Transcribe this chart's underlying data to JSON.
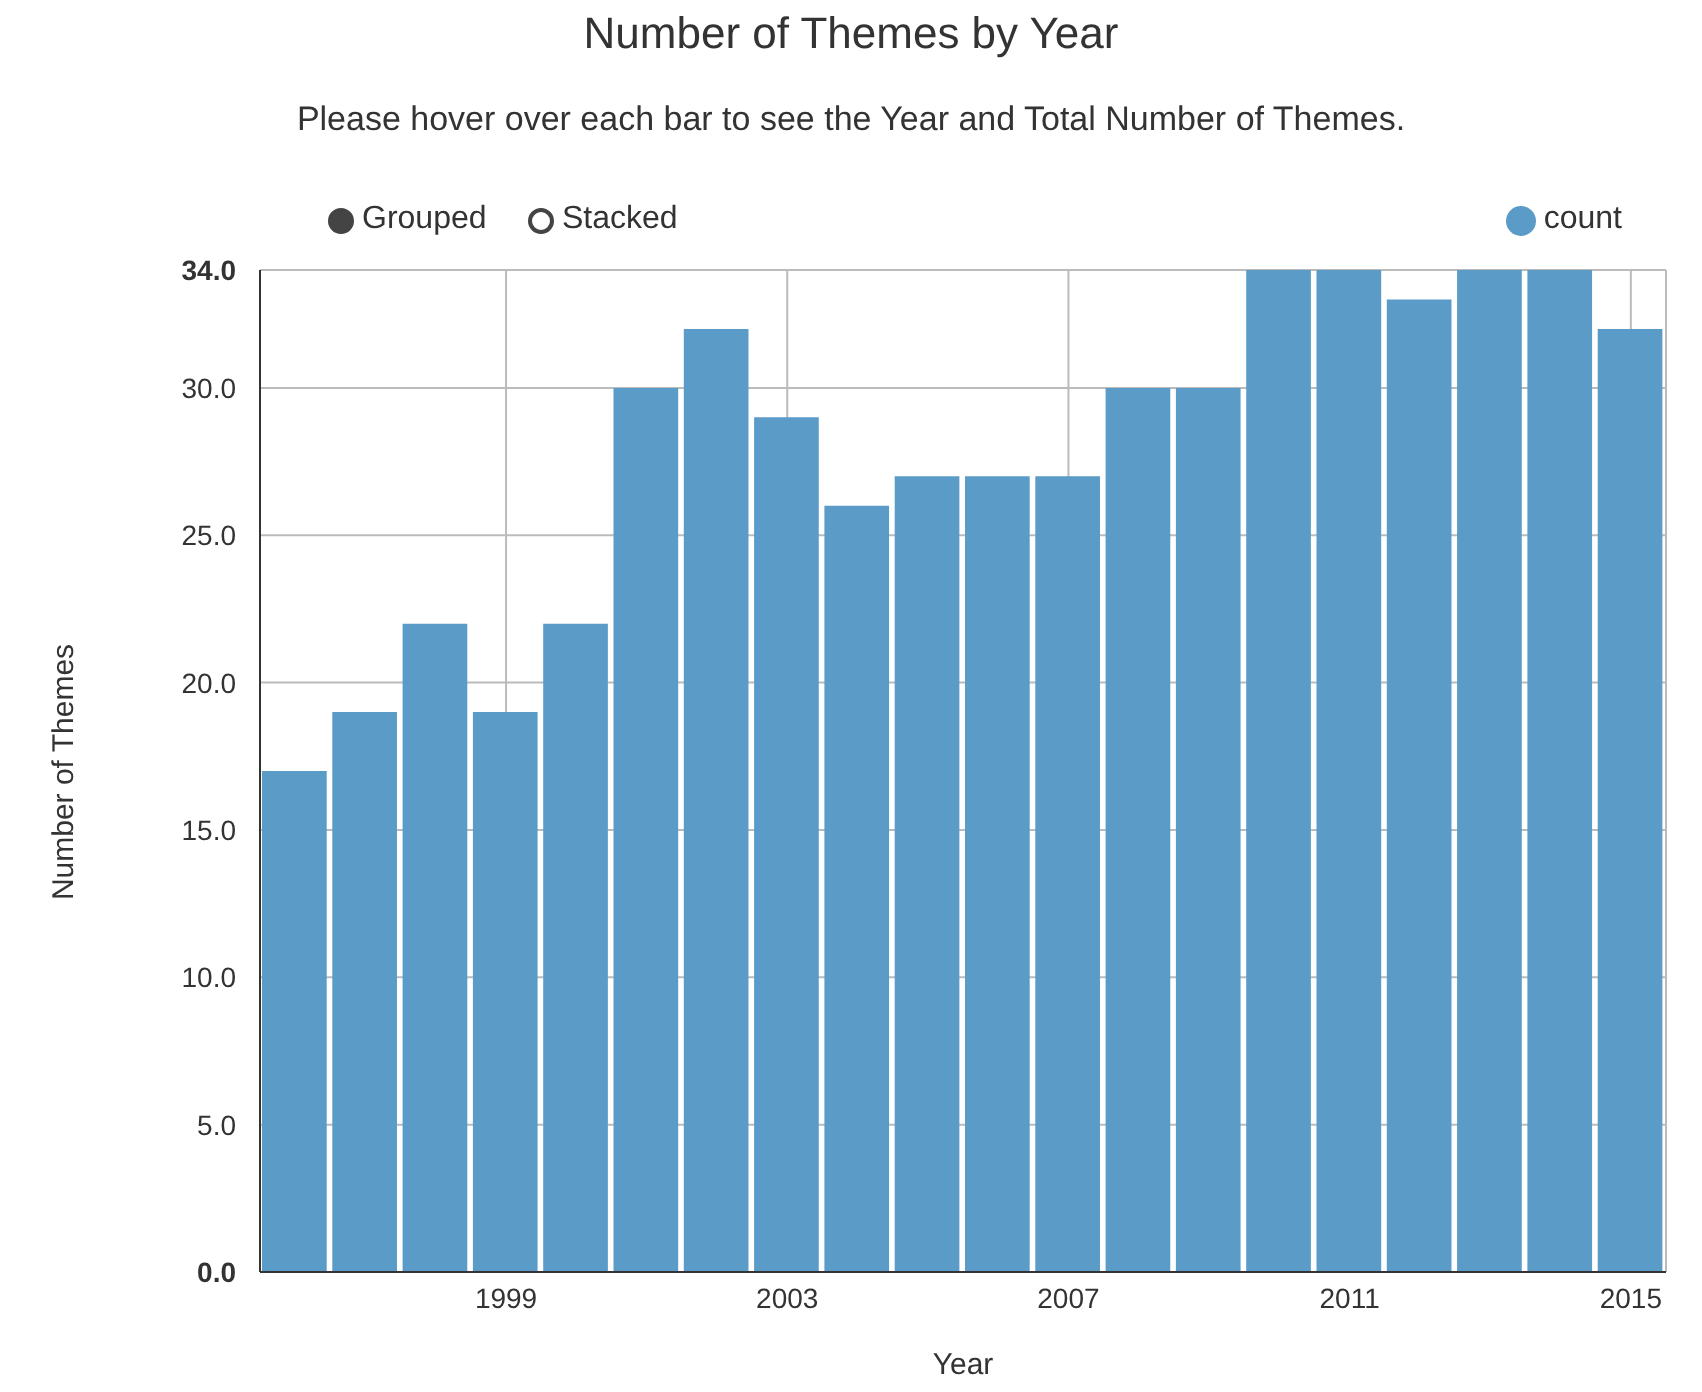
{
  "chart_data": {
    "type": "bar",
    "title": "Number of Themes by Year",
    "subtitle": "Please hover over each bar to see the Year and Total Number of Themes.",
    "xlabel": "Year",
    "ylabel": "Number of Themes",
    "x": [
      1996,
      1997,
      1998,
      1999,
      2000,
      2001,
      2002,
      2003,
      2004,
      2005,
      2006,
      2007,
      2008,
      2009,
      2010,
      2011,
      2012,
      2013,
      2014,
      2015
    ],
    "series": [
      {
        "name": "count",
        "color": "#5a9bc8",
        "values": [
          17,
          19,
          22,
          19,
          22,
          30,
          32,
          29,
          26,
          27,
          27,
          27,
          30,
          30,
          34,
          34,
          33,
          34,
          34,
          32
        ]
      }
    ],
    "xlim": [
      1995.5,
      2015.5
    ],
    "xticks": [
      1999,
      2003,
      2007,
      2011,
      2015
    ],
    "ylim": [
      0,
      34
    ],
    "yticks": [
      {
        "value": 0,
        "label": "0.0"
      },
      {
        "value": 5,
        "label": "5.0"
      },
      {
        "value": 10,
        "label": "10.0"
      },
      {
        "value": 15,
        "label": "15.0"
      },
      {
        "value": 20,
        "label": "20.0"
      },
      {
        "value": 25,
        "label": "25.0"
      },
      {
        "value": 30,
        "label": "30.0"
      },
      {
        "value": 34,
        "label": "34.0"
      }
    ],
    "grid": true,
    "legend": "top right",
    "annotations": [
      "Grouped",
      "Stacked"
    ]
  }
}
